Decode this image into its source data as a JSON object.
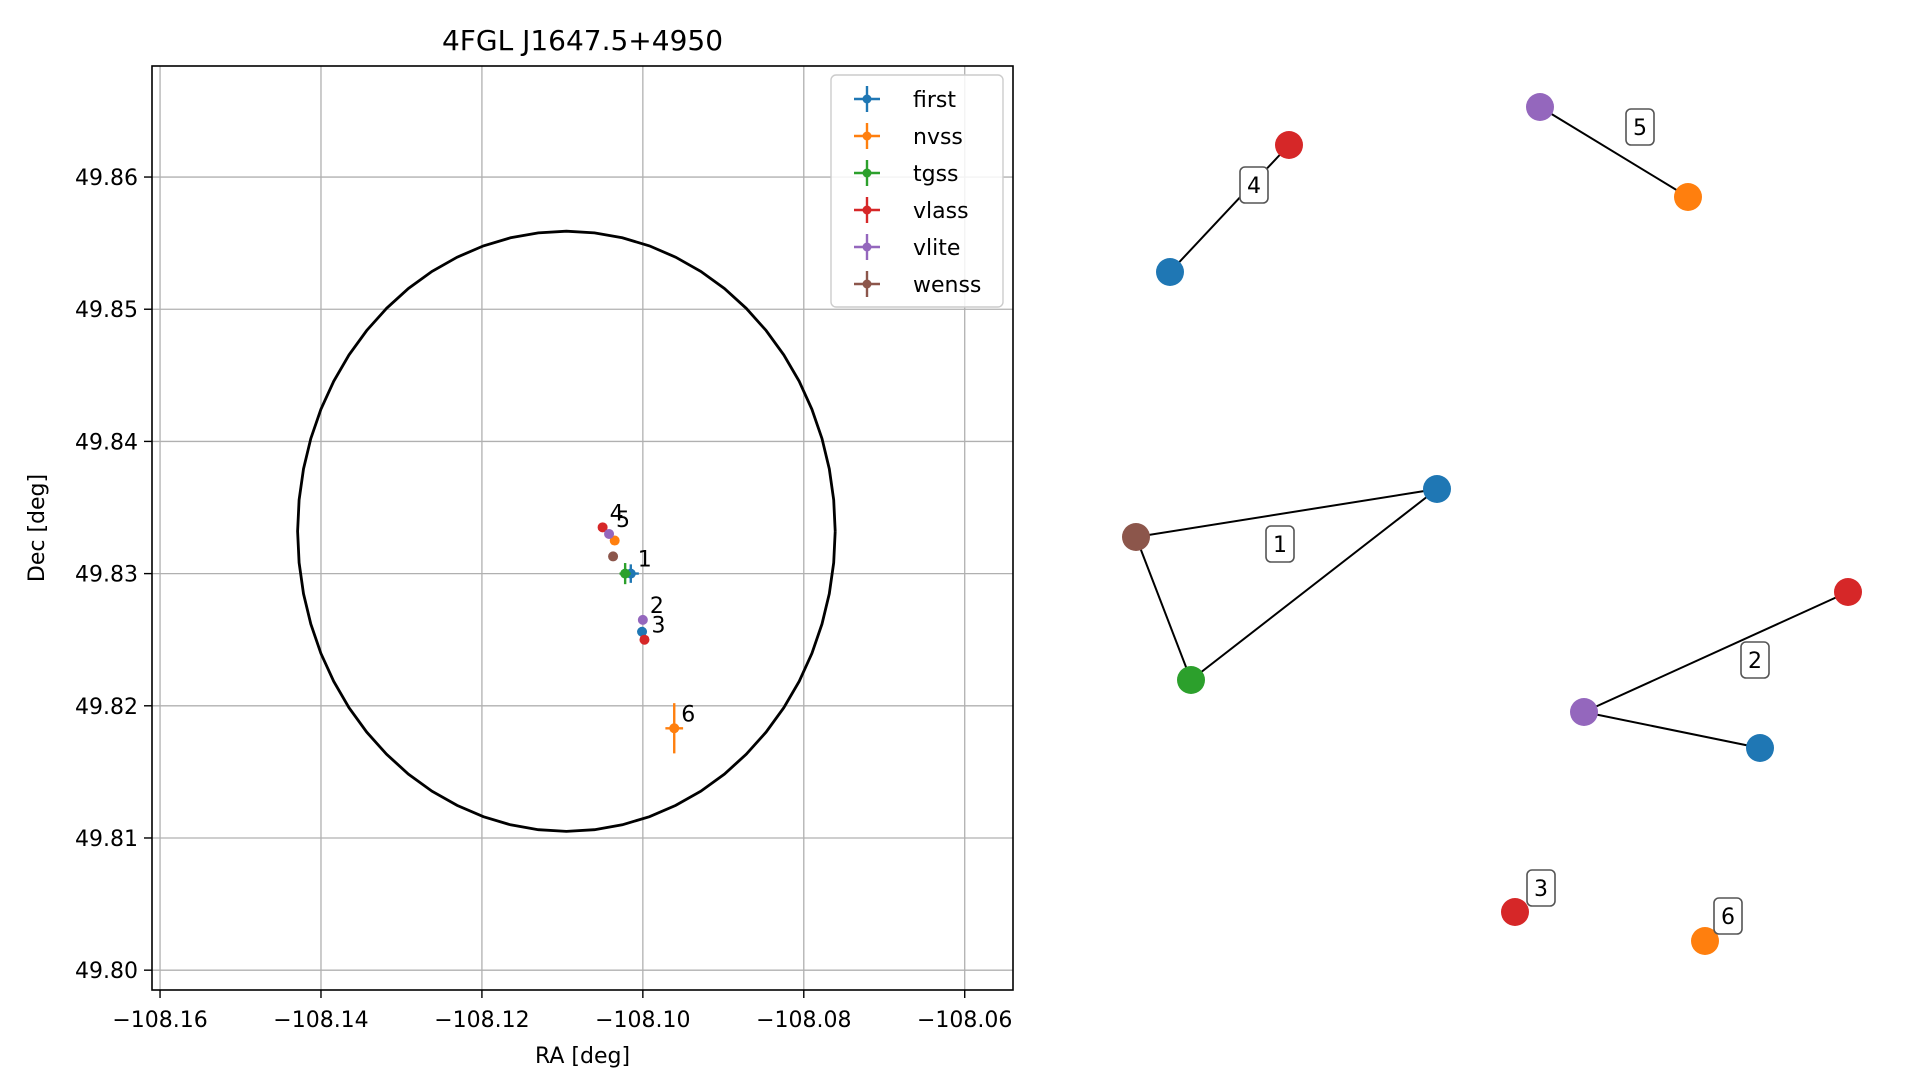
{
  "chart_data": [
    {
      "type": "scatter",
      "title": "4FGL J1647.5+4950",
      "xlabel": "RA [deg]",
      "ylabel": "Dec [deg]",
      "xlim": [
        -108.161,
        -108.054
      ],
      "ylim": [
        49.7985,
        49.8684
      ],
      "xticks": [
        -108.16,
        -108.14,
        -108.12,
        -108.1,
        -108.08,
        -108.06
      ],
      "xtick_labels": [
        "−108.16",
        "−108.14",
        "−108.12",
        "−108.10",
        "−108.08",
        "−108.06"
      ],
      "yticks": [
        49.8,
        49.81,
        49.82,
        49.83,
        49.84,
        49.85,
        49.86
      ],
      "ytick_labels": [
        "49.80",
        "49.81",
        "49.82",
        "49.83",
        "49.84",
        "49.85",
        "49.86"
      ],
      "grid": true,
      "legend": "top-right",
      "ellipse": {
        "center": [
          -108.1095,
          49.8332
        ],
        "semi_axis_ra": 0.0334,
        "semi_axis_dec": 0.0227,
        "color": "#000000"
      },
      "series": [
        {
          "name": "first",
          "color": "#1f77b4",
          "points": [
            {
              "x": -108.1015,
              "y": 49.83,
              "xerr": 0.001,
              "yerr": 0.0007
            },
            {
              "x": -108.1001,
              "y": 49.8256
            }
          ]
        },
        {
          "name": "nvss",
          "color": "#ff7f0e",
          "points": [
            {
              "x": -108.1035,
              "y": 49.8325
            },
            {
              "x": -108.0961,
              "y": 49.8183,
              "xerr": 0.0011,
              "yerr": 0.0019
            }
          ]
        },
        {
          "name": "tgss",
          "color": "#2ca02c",
          "points": [
            {
              "x": -108.1022,
              "y": 49.83,
              "xerr": 0.0007,
              "yerr": 0.0008
            }
          ]
        },
        {
          "name": "vlass",
          "color": "#d62728",
          "points": [
            {
              "x": -108.105,
              "y": 49.8335
            },
            {
              "x": -108.0998,
              "y": 49.825
            }
          ]
        },
        {
          "name": "vlite",
          "color": "#9467bd",
          "points": [
            {
              "x": -108.1042,
              "y": 49.833
            },
            {
              "x": -108.1,
              "y": 49.8265
            }
          ]
        },
        {
          "name": "wenss",
          "color": "#8c564b",
          "points": [
            {
              "x": -108.1037,
              "y": 49.8313
            }
          ]
        }
      ],
      "annotations": [
        {
          "text": "1",
          "x": -108.1015,
          "y": 49.83
        },
        {
          "text": "2",
          "x": -108.1,
          "y": 49.8265
        },
        {
          "text": "3",
          "x": -108.0998,
          "y": 49.825
        },
        {
          "text": "4",
          "x": -108.105,
          "y": 49.8335
        },
        {
          "text": "5",
          "x": -108.1042,
          "y": 49.833
        },
        {
          "text": "6",
          "x": -108.0961,
          "y": 49.8183
        }
      ]
    },
    {
      "type": "network",
      "nodes": [
        {
          "id": "g1_first",
          "color": "#1f77b4"
        },
        {
          "id": "g1_wenss",
          "color": "#8c564b"
        },
        {
          "id": "g1_tgss",
          "color": "#2ca02c"
        },
        {
          "id": "g2_vlass",
          "color": "#d62728"
        },
        {
          "id": "g2_vlite",
          "color": "#9467bd"
        },
        {
          "id": "g2_first",
          "color": "#1f77b4"
        },
        {
          "id": "g3_vlass",
          "color": "#d62728"
        },
        {
          "id": "g4_vlass",
          "color": "#d62728"
        },
        {
          "id": "g4_first",
          "color": "#1f77b4"
        },
        {
          "id": "g5_vlite",
          "color": "#9467bd"
        },
        {
          "id": "g5_nvss",
          "color": "#ff7f0e"
        },
        {
          "id": "g6_nvss",
          "color": "#ff7f0e"
        }
      ],
      "edges": [
        [
          "g1_wenss",
          "g1_first"
        ],
        [
          "g1_wenss",
          "g1_tgss"
        ],
        [
          "g1_tgss",
          "g1_first"
        ],
        [
          "g2_vlite",
          "g2_vlass"
        ],
        [
          "g2_vlite",
          "g2_first"
        ],
        [
          "g4_first",
          "g4_vlass"
        ],
        [
          "g5_vlite",
          "g5_nvss"
        ]
      ],
      "labels": [
        "1",
        "2",
        "3",
        "4",
        "5",
        "6"
      ]
    }
  ]
}
